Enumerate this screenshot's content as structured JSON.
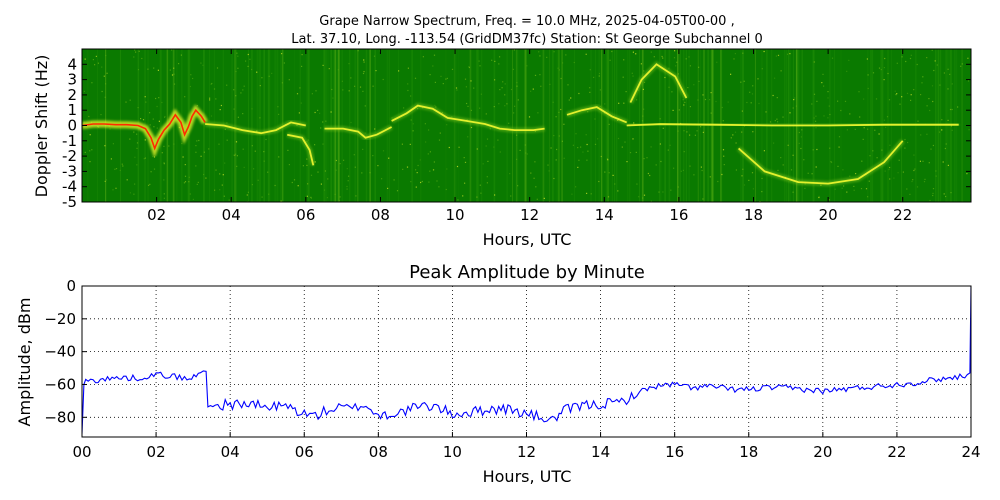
{
  "figure": {
    "title_line1": "Grape Narrow Spectrum, Freq. = 10.0 MHz, 2025-04-05T00-00 ,",
    "title_line2": "Lat.  37.10, Long. -113.54 (GridDM37fc) Station: St George Subchannel 0"
  },
  "colors": {
    "spectrogram_background": "#0a7a00",
    "spectrogram_mid": "#7ec51c",
    "spectrogram_high": "#ffff33",
    "spectrogram_peak": "#ff2a00",
    "amplitude_line": "#0000ff",
    "grid": "#000000"
  },
  "chart_data": [
    {
      "type": "heatmap",
      "title": "",
      "xlabel": "Hours, UTC",
      "ylabel": "Doppler Shift (Hz)",
      "xlim": [
        0,
        23.83
      ],
      "ylim": [
        -5,
        5
      ],
      "xticks": [
        2,
        4,
        6,
        8,
        10,
        12,
        14,
        16,
        18,
        20,
        22
      ],
      "xtick_labels": [
        "02",
        "04",
        "06",
        "08",
        "10",
        "12",
        "14",
        "16",
        "18",
        "20",
        "22"
      ],
      "yticks": [
        4,
        3,
        2,
        1,
        0,
        -1,
        -2,
        -3,
        -4,
        -5
      ],
      "ytick_labels": [
        "4",
        "3",
        "2",
        "1",
        "0",
        "-1",
        "-2",
        "-3",
        "-4",
        "-5"
      ],
      "grid": false,
      "carrier_trace": [
        [
          0.0,
          0.0
        ],
        [
          0.3,
          0.1
        ],
        [
          0.6,
          0.1
        ],
        [
          0.9,
          0.05
        ],
        [
          1.2,
          0.05
        ],
        [
          1.5,
          0.0
        ],
        [
          1.7,
          -0.2
        ],
        [
          1.85,
          -0.8
        ],
        [
          1.95,
          -1.5
        ],
        [
          2.05,
          -0.9
        ],
        [
          2.2,
          -0.3
        ],
        [
          2.35,
          0.1
        ],
        [
          2.5,
          0.7
        ],
        [
          2.65,
          0.2
        ],
        [
          2.75,
          -0.6
        ],
        [
          2.85,
          -0.1
        ],
        [
          2.95,
          0.6
        ],
        [
          3.05,
          1.0
        ],
        [
          3.2,
          0.6
        ],
        [
          3.3,
          0.2
        ]
      ],
      "faint_traces": [
        [
          [
            3.3,
            0.1
          ],
          [
            3.8,
            0.0
          ],
          [
            4.3,
            -0.3
          ],
          [
            4.8,
            -0.5
          ],
          [
            5.2,
            -0.3
          ],
          [
            5.6,
            0.2
          ],
          [
            6.0,
            0.0
          ]
        ],
        [
          [
            5.5,
            -0.6
          ],
          [
            5.9,
            -0.8
          ],
          [
            6.1,
            -1.6
          ],
          [
            6.2,
            -2.6
          ]
        ],
        [
          [
            6.5,
            -0.2
          ],
          [
            7.0,
            -0.2
          ],
          [
            7.4,
            -0.4
          ],
          [
            7.6,
            -0.8
          ],
          [
            7.9,
            -0.6
          ],
          [
            8.3,
            -0.1
          ]
        ],
        [
          [
            8.3,
            0.3
          ],
          [
            8.7,
            0.8
          ],
          [
            9.0,
            1.3
          ],
          [
            9.4,
            1.1
          ],
          [
            9.8,
            0.5
          ],
          [
            10.3,
            0.3
          ],
          [
            10.8,
            0.1
          ],
          [
            11.2,
            -0.2
          ],
          [
            11.6,
            -0.3
          ],
          [
            12.1,
            -0.3
          ],
          [
            12.4,
            -0.2
          ]
        ],
        [
          [
            13.0,
            0.7
          ],
          [
            13.4,
            1.0
          ],
          [
            13.8,
            1.2
          ],
          [
            14.2,
            0.6
          ],
          [
            14.6,
            0.2
          ]
        ],
        [
          [
            14.6,
            0.0
          ],
          [
            15.5,
            0.1
          ],
          [
            17.0,
            0.05
          ],
          [
            18.5,
            0.0
          ],
          [
            20.0,
            0.0
          ],
          [
            21.5,
            0.05
          ],
          [
            23.5,
            0.05
          ]
        ],
        [
          [
            14.7,
            1.5
          ],
          [
            15.0,
            3.0
          ],
          [
            15.4,
            4.0
          ],
          [
            15.9,
            3.2
          ],
          [
            16.2,
            1.8
          ]
        ],
        [
          [
            17.6,
            -1.5
          ],
          [
            18.3,
            -3.0
          ],
          [
            19.2,
            -3.7
          ],
          [
            20.0,
            -3.8
          ],
          [
            20.8,
            -3.5
          ],
          [
            21.5,
            -2.4
          ],
          [
            22.0,
            -1.0
          ]
        ]
      ]
    },
    {
      "type": "line",
      "title": "Peak Amplitude by Minute",
      "xlabel": "Hours, UTC",
      "ylabel": "Amplitude, dBm",
      "xlim": [
        0,
        24
      ],
      "ylim": [
        -92,
        0
      ],
      "xticks": [
        0,
        2,
        4,
        6,
        8,
        10,
        12,
        14,
        16,
        18,
        20,
        22,
        24
      ],
      "xtick_labels": [
        "00",
        "02",
        "04",
        "06",
        "08",
        "10",
        "12",
        "14",
        "16",
        "18",
        "20",
        "22",
        "24"
      ],
      "yticks": [
        0,
        -20,
        -40,
        -60,
        -80
      ],
      "ytick_labels": [
        "0",
        "−20",
        "−40",
        "−60",
        "−80"
      ],
      "grid": true,
      "series": [
        {
          "x": [
            0.0,
            0.05,
            0.1,
            0.5,
            1.0,
            1.5,
            2.0,
            2.5,
            2.9,
            3.2,
            3.35,
            3.4,
            3.6,
            4.0,
            4.5,
            5.0,
            5.5,
            6.0,
            6.3,
            6.6,
            7.0,
            7.3,
            7.6,
            8.0,
            8.3,
            8.6,
            9.0,
            9.5,
            10.0,
            10.5,
            11.0,
            11.5,
            12.0,
            12.4,
            12.7,
            13.0,
            13.5,
            14.0,
            14.5,
            14.9,
            15.2,
            15.5,
            16.0,
            16.5,
            17.0,
            17.5,
            18.0,
            18.5,
            19.0,
            19.5,
            20.0,
            20.5,
            21.0,
            21.5,
            22.0,
            22.5,
            23.0,
            23.5,
            23.9,
            23.97,
            24.0
          ],
          "y": [
            -90,
            -60,
            -58,
            -57,
            -56,
            -56,
            -54,
            -55,
            -57,
            -53,
            -52,
            -72,
            -73,
            -72,
            -72,
            -74,
            -73,
            -78,
            -79,
            -76,
            -74,
            -75,
            -72,
            -79,
            -78,
            -77,
            -74,
            -73,
            -78,
            -77,
            -75,
            -75,
            -78,
            -80,
            -82,
            -76,
            -73,
            -72,
            -71,
            -67,
            -63,
            -61,
            -60,
            -62,
            -61,
            -63,
            -63,
            -62,
            -62,
            -63,
            -64,
            -63,
            -62,
            -61,
            -60,
            -59,
            -57,
            -56,
            -54,
            -53,
            0
          ]
        }
      ]
    }
  ]
}
